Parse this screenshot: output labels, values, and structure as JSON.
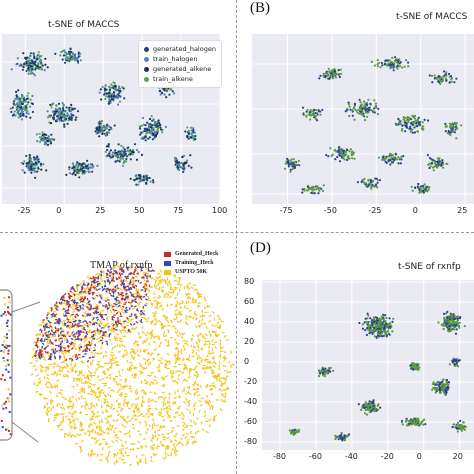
{
  "panels": {
    "a": {
      "label": "",
      "title": "t-SNE of MACCS"
    },
    "b": {
      "label": "(B)",
      "title": "t-SNE of MACCS"
    },
    "c": {
      "label": "",
      "title": "TMAP of rxnfp"
    },
    "d": {
      "label": "(D)",
      "title": "t-SNE of rxnfp"
    }
  },
  "colors": {
    "generated_halogen": "#1f3f7f",
    "train_halogen": "#4f86b8",
    "generated_alkene": "#1a3350",
    "train_alkene": "#5aa05a",
    "b_blue": "#2a3f9a",
    "b_green": "#5c9a3c",
    "generated_heck": "#c62a2a",
    "training_heck": "#2b4cc0",
    "uspto": "#f2c51a",
    "plot_bg": "#eaeaf2"
  },
  "chart_data": [
    {
      "id": "A",
      "type": "scatter",
      "title": "t-SNE of MACCS",
      "xticks": [
        "-25",
        "0",
        "25",
        "50",
        "75",
        "100"
      ],
      "xlim": [
        -40,
        100
      ],
      "legend": [
        "generated_halogen",
        "train_halogen",
        "generated_alkene",
        "train_alkene"
      ],
      "legend_position": "top-right",
      "grid": true
    },
    {
      "id": "B",
      "type": "scatter",
      "title": "t-SNE of MACCS",
      "xticks": [
        "-75",
        "-50",
        "-25",
        "0",
        "25"
      ],
      "xlim": [
        -95,
        30
      ],
      "grid": true
    },
    {
      "id": "C",
      "type": "scatter",
      "title": "TMAP of rxnfp",
      "legend": [
        "Generated_Heck",
        "Training_Heck",
        "USPTO 50K"
      ],
      "legend_position": "top-right"
    },
    {
      "id": "D",
      "type": "scatter",
      "title": "t-SNE of rxnfp",
      "xticks": [
        "-80",
        "-60",
        "-40",
        "-20",
        "0",
        "20"
      ],
      "yticks": [
        "80",
        "60",
        "40",
        "20",
        "0",
        "-20",
        "-40",
        "-60",
        "-80"
      ],
      "xlim": [
        -90,
        28
      ],
      "ylim": [
        -88,
        82
      ],
      "grid": true
    }
  ]
}
